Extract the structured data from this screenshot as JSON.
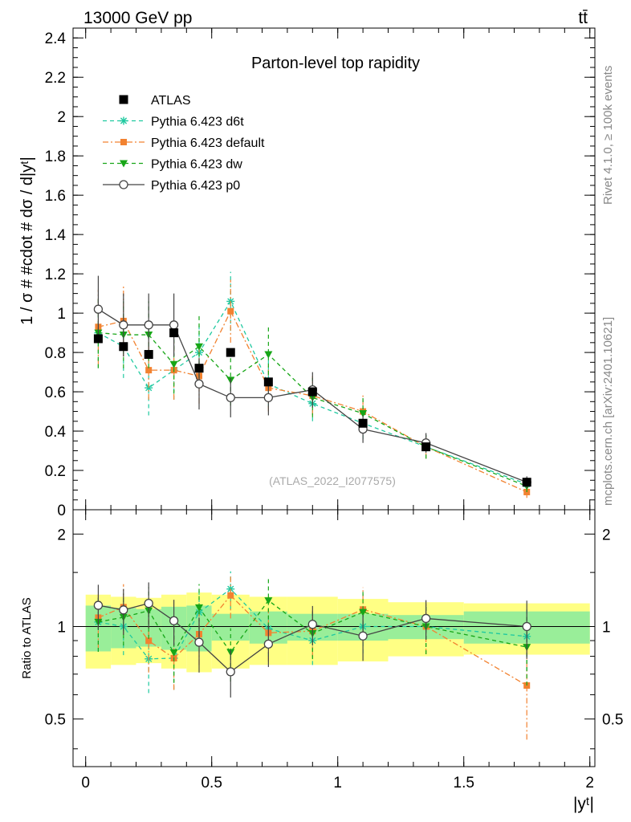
{
  "header": {
    "process": "13000 GeV pp",
    "final_state": "tt̄"
  },
  "side_labels": {
    "rivet": "Rivet 4.1.0, ≥ 100k events",
    "mcplots": "mcplots.cern.ch [arXiv:2401.10621]"
  },
  "chart_data": {
    "type": "line",
    "title": "Parton-level top rapidity",
    "analysis_id": "(ATLAS_2022_I2077575)",
    "xlabel": "|yᵗ|",
    "ylabel": "1 / σ # #cdot # dσ / d|yᵗ|",
    "ratio_ylabel": "Ratio to ATLAS",
    "xlim": [
      -0.05,
      2.02
    ],
    "ylim": [
      0,
      2.45
    ],
    "ratio_ylim": [
      0.35,
      2.4
    ],
    "x_ticks": [
      "0",
      "0.5",
      "1",
      "1.5",
      "2"
    ],
    "y_ticks": [
      "0",
      "0.2",
      "0.4",
      "0.6",
      "0.8",
      "1",
      "1.2",
      "1.4",
      "1.6",
      "1.8",
      "2",
      "2.2",
      "2.4"
    ],
    "ratio_y_ticks": [
      "0.5",
      "1",
      "2"
    ],
    "bin_edges": [
      0,
      0.1,
      0.2,
      0.3,
      0.4,
      0.5,
      0.65,
      0.8,
      1.0,
      1.2,
      1.5,
      2.0
    ],
    "x": [
      0.05,
      0.15,
      0.25,
      0.35,
      0.45,
      0.575,
      0.725,
      0.9,
      1.1,
      1.35,
      1.75
    ],
    "data": {
      "name": "ATLAS",
      "values": [
        0.87,
        0.83,
        0.79,
        0.9,
        0.72,
        0.8,
        0.65,
        0.6,
        0.44,
        0.32,
        0.14
      ],
      "band_inner": [
        0.17,
        0.15,
        0.14,
        0.16,
        0.17,
        0.1,
        0.12,
        0.1,
        0.1,
        0.09,
        0.12
      ],
      "band_outer": [
        0.27,
        0.25,
        0.24,
        0.27,
        0.29,
        0.27,
        0.25,
        0.25,
        0.23,
        0.2,
        0.19
      ]
    },
    "series": [
      {
        "name": "Pythia 6.423 d6t",
        "color": "#1fc9a0",
        "marker": "star",
        "dash": "5,4",
        "values": [
          0.9,
          0.83,
          0.62,
          0.71,
          0.8,
          1.06,
          0.64,
          0.54,
          0.44,
          0.32,
          0.13
        ],
        "errors": [
          0.18,
          0.16,
          0.14,
          0.15,
          0.14,
          0.15,
          0.12,
          0.09,
          0.08,
          0.06,
          0.03
        ]
      },
      {
        "name": "Pythia 6.423 default",
        "color": "#f28230",
        "marker": "square",
        "dash": "7,3,2,3",
        "values": [
          0.93,
          0.96,
          0.71,
          0.71,
          0.68,
          1.01,
          0.62,
          0.58,
          0.5,
          0.32,
          0.09
        ],
        "errors": [
          0.19,
          0.18,
          0.15,
          0.15,
          0.14,
          0.16,
          0.12,
          0.1,
          0.09,
          0.06,
          0.03
        ]
      },
      {
        "name": "Pythia 6.423 dw",
        "color": "#17a617",
        "marker": "tridown",
        "dash": "5,4",
        "values": [
          0.9,
          0.89,
          0.89,
          0.74,
          0.83,
          0.66,
          0.79,
          0.57,
          0.49,
          0.32,
          0.12
        ],
        "errors": [
          0.18,
          0.17,
          0.17,
          0.15,
          0.16,
          0.13,
          0.14,
          0.1,
          0.09,
          0.06,
          0.03
        ]
      },
      {
        "name": "Pythia 6.423 p0",
        "color": "#444444",
        "marker": "circle",
        "dash": "",
        "values": [
          1.02,
          0.94,
          0.94,
          0.94,
          0.64,
          0.57,
          0.57,
          0.61,
          0.41,
          0.34,
          0.14
        ],
        "errors": [
          0.17,
          0.16,
          0.16,
          0.16,
          0.13,
          0.1,
          0.09,
          0.09,
          0.07,
          0.05,
          0.03
        ]
      }
    ]
  }
}
